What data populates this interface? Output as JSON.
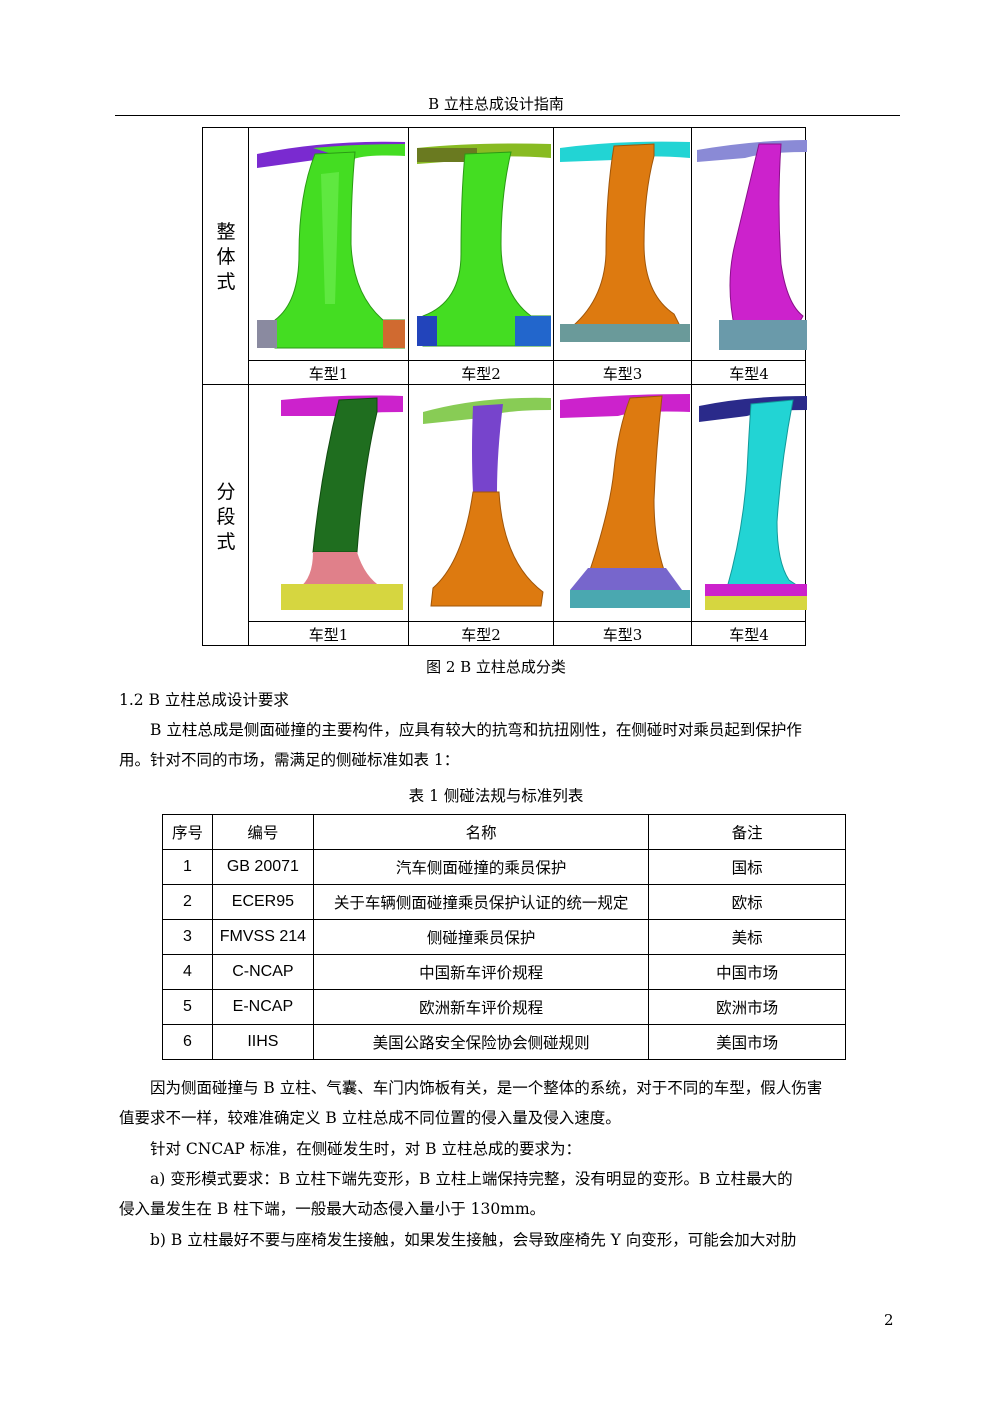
{
  "header": {
    "title": "B 立柱总成设计指南"
  },
  "figure": {
    "row_labels": {
      "integral": "整\n体\n式",
      "segmented": "分\n段\n式"
    },
    "captions": [
      "车型1",
      "车型2",
      "车型3",
      "车型4"
    ],
    "caption": "图 2   B 立柱总成分类"
  },
  "section": {
    "heading": "1.2   B 立柱总成设计要求"
  },
  "para1": {
    "line1": "B 立柱总成是侧面碰撞的主要构件，应具有较大的抗弯和抗扭刚性，在侧碰时对乘员起到保护作",
    "line2": "用。针对不同的市场，需满足的侧碰标准如表 1："
  },
  "table": {
    "title": "表  1    侧碰法规与标准列表",
    "headers": [
      "序号",
      "编号",
      "名称",
      "备注"
    ],
    "rows": [
      [
        "1",
        "GB 20071",
        "汽车侧面碰撞的乘员保护",
        "国标"
      ],
      [
        "2",
        "ECER95",
        "关于车辆侧面碰撞乘员保护认证的统一规定",
        "欧标"
      ],
      [
        "3",
        "FMVSS 214",
        "侧碰撞乘员保护",
        "美标"
      ],
      [
        "4",
        "C-NCAP",
        "中国新车评价规程",
        "中国市场"
      ],
      [
        "5",
        "E-NCAP",
        "欧洲新车评价规程",
        "欧洲市场"
      ],
      [
        "6",
        "IIHS",
        "美国公路安全保险协会侧碰规则",
        "美国市场"
      ]
    ]
  },
  "para2": {
    "line1": "因为侧面碰撞与 B 立柱、气囊、车门内饰板有关，是一个整体的系统，对于不同的车型，假人伤害",
    "line2": "值要求不一样，较难准确定义 B 立柱总成不同位置的侵入量及侵入速度。"
  },
  "para3": {
    "line1": "针对 CNCAP 标准，在侧碰发生时，对 B 立柱总成的要求为："
  },
  "para4": {
    "line1": "a)   变形模式要求：B 立柱下端先变形，B 立柱上端保持完整，没有明显的变形。B 立柱最大的",
    "line2": "侵入量发生在 B 柱下端，一般最大动态侵入量小于 130mm。"
  },
  "para5": {
    "line1": "b)   B 立柱最好不要与座椅发生接触，如果发生接触，会导致座椅先 Y 向变形，可能会加大对肋"
  },
  "page_number": "2",
  "colors": {
    "green": "#44dd22",
    "dark_green": "#1f6e1f",
    "orange": "#dd7a10",
    "magenta": "#cc22cc",
    "cyan": "#22d4d4",
    "purple": "#7744cc",
    "salmon": "#e0808a",
    "yellow": "#d6d640",
    "blue": "#2244bb"
  }
}
